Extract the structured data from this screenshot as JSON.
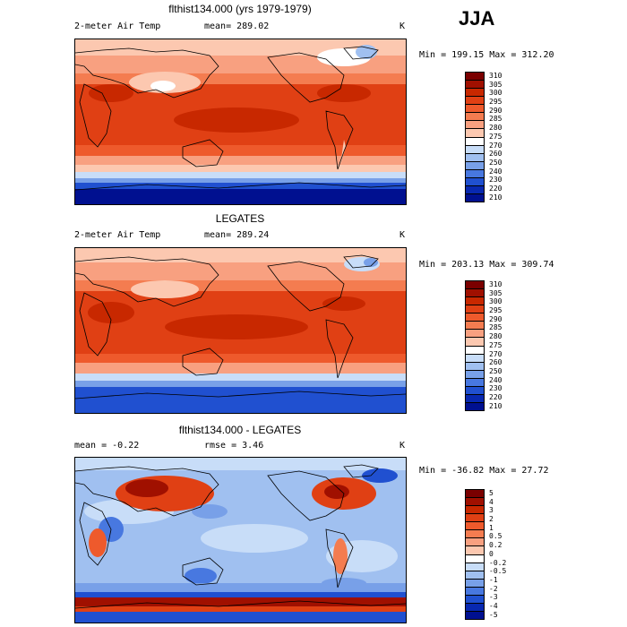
{
  "season": "JJA",
  "panels": [
    {
      "title": "flthist134.000 (yrs 1979-1979)",
      "left_label": "2-meter Air Temp",
      "center_label": "mean= 289.02",
      "unit": "K",
      "minmax": "Min = 199.15 Max = 312.20",
      "cbar": {
        "labels": [
          "310",
          "305",
          "300",
          "295",
          "290",
          "285",
          "280",
          "275",
          "270",
          "260",
          "250",
          "240",
          "230",
          "220",
          "210"
        ],
        "colors": [
          "#7a0000",
          "#a01000",
          "#c82800",
          "#e04014",
          "#ee5a2c",
          "#f47c50",
          "#f8a080",
          "#fcc8b0",
          "#ffffff",
          "#c8ddf8",
          "#a0c0f0",
          "#78a0e8",
          "#4878e0",
          "#2050d0",
          "#0828b0",
          "#001090"
        ]
      },
      "map_type": "temperature"
    },
    {
      "title": "LEGATES",
      "left_label": "2-meter Air Temp",
      "center_label": "mean= 289.24",
      "unit": "K",
      "minmax": "Min = 203.13 Max = 309.74",
      "cbar": {
        "labels": [
          "310",
          "305",
          "300",
          "295",
          "290",
          "285",
          "280",
          "275",
          "270",
          "260",
          "250",
          "240",
          "230",
          "220",
          "210"
        ],
        "colors": [
          "#7a0000",
          "#a01000",
          "#c82800",
          "#e04014",
          "#ee5a2c",
          "#f47c50",
          "#f8a080",
          "#fcc8b0",
          "#ffffff",
          "#c8ddf8",
          "#a0c0f0",
          "#78a0e8",
          "#4878e0",
          "#2050d0",
          "#0828b0",
          "#001090"
        ]
      },
      "map_type": "temperature_obs"
    },
    {
      "title": "flthist134.000 - LEGATES",
      "left_label": "mean =   -0.22",
      "center_label": "rmse =    3.46",
      "unit": "K",
      "minmax": "Min = -36.82  Max =   27.72",
      "cbar": {
        "labels": [
          "5",
          "4",
          "3",
          "2",
          "1",
          "0.5",
          "0.2",
          "0",
          "-0.2",
          "-0.5",
          "-1",
          "-2",
          "-3",
          "-4",
          "-5"
        ],
        "colors": [
          "#7a0000",
          "#a01000",
          "#c82800",
          "#e04014",
          "#ee5a2c",
          "#f47c50",
          "#f8a080",
          "#fcc8b0",
          "#ffffff",
          "#c8ddf8",
          "#a0c0f0",
          "#78a0e8",
          "#4878e0",
          "#2050d0",
          "#0828b0",
          "#001090"
        ]
      },
      "map_type": "difference"
    }
  ]
}
